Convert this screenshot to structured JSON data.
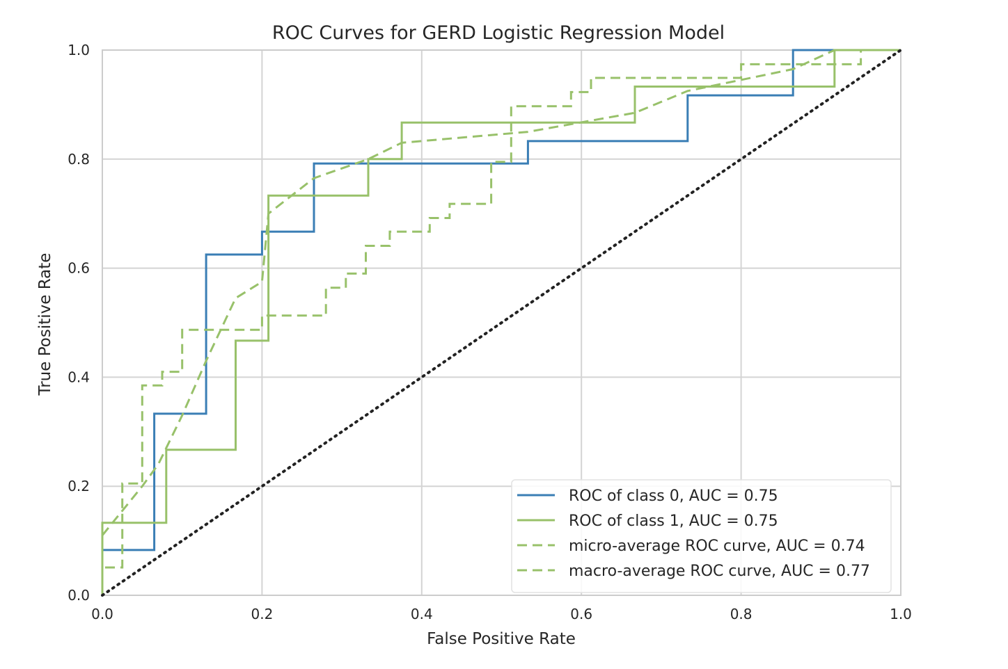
{
  "chart_data": {
    "type": "line",
    "title": "ROC Curves for GERD Logistic Regression Model",
    "xlabel": "False Positive Rate",
    "ylabel": "True Positive Rate",
    "xlim": [
      0.0,
      1.0
    ],
    "ylim": [
      0.0,
      1.0
    ],
    "xticks": [
      "0.0",
      "0.2",
      "0.4",
      "0.6",
      "0.8",
      "1.0"
    ],
    "yticks": [
      "0.0",
      "0.2",
      "0.4",
      "0.6",
      "0.8",
      "1.0"
    ],
    "grid": true,
    "legend_position": "lower-right",
    "series": [
      {
        "name": "ROC of class 0, AUC = 0.75",
        "color": "#3a7eb5",
        "style": "solid",
        "x": [
          0,
          0,
          0.065,
          0.065,
          0.13,
          0.13,
          0.2,
          0.2,
          0.265,
          0.265,
          0.533,
          0.533,
          0.733,
          0.733,
          0.865,
          0.865,
          1.0
        ],
        "y": [
          0,
          0.083,
          0.083,
          0.333,
          0.333,
          0.625,
          0.625,
          0.667,
          0.667,
          0.792,
          0.792,
          0.833,
          0.833,
          0.917,
          0.917,
          1.0,
          1.0
        ]
      },
      {
        "name": "ROC of class 1, AUC = 0.75",
        "color": "#98c16a",
        "style": "solid",
        "x": [
          0,
          0,
          0.08,
          0.08,
          0.167,
          0.167,
          0.208,
          0.208,
          0.333,
          0.333,
          0.375,
          0.375,
          0.667,
          0.667,
          0.917,
          0.917,
          1.0
        ],
        "y": [
          0,
          0.133,
          0.133,
          0.267,
          0.267,
          0.467,
          0.467,
          0.733,
          0.733,
          0.8,
          0.8,
          0.867,
          0.867,
          0.933,
          0.933,
          1.0,
          1.0
        ]
      },
      {
        "name": "micro-average ROC curve, AUC = 0.74",
        "color": "#98c16a",
        "style": "dashed",
        "x": [
          0,
          0,
          0.025,
          0.025,
          0.05,
          0.05,
          0.075,
          0.075,
          0.1,
          0.1,
          0.2,
          0.2,
          0.28,
          0.28,
          0.305,
          0.305,
          0.33,
          0.33,
          0.36,
          0.36,
          0.41,
          0.41,
          0.435,
          0.435,
          0.487,
          0.487,
          0.512,
          0.512,
          0.587,
          0.587,
          0.612,
          0.612,
          0.8,
          0.8,
          0.95,
          0.95,
          1.0
        ],
        "y": [
          0,
          0.051,
          0.051,
          0.205,
          0.205,
          0.385,
          0.385,
          0.41,
          0.41,
          0.487,
          0.487,
          0.513,
          0.513,
          0.564,
          0.564,
          0.59,
          0.59,
          0.641,
          0.641,
          0.667,
          0.667,
          0.692,
          0.692,
          0.718,
          0.718,
          0.795,
          0.795,
          0.897,
          0.897,
          0.923,
          0.923,
          0.949,
          0.949,
          0.974,
          0.974,
          1.0,
          1.0
        ]
      },
      {
        "name": "macro-average ROC curve, AUC = 0.77",
        "color": "#98c16a",
        "style": "dashed",
        "x": [
          0,
          0.05,
          0.07,
          0.1,
          0.13,
          0.167,
          0.2,
          0.208,
          0.265,
          0.333,
          0.375,
          0.533,
          0.667,
          0.733,
          0.865,
          0.917,
          1.0
        ],
        "y": [
          0.11,
          0.2,
          0.24,
          0.33,
          0.43,
          0.545,
          0.575,
          0.7,
          0.765,
          0.8,
          0.83,
          0.85,
          0.885,
          0.925,
          0.965,
          1.0,
          1.0
        ]
      },
      {
        "name": "",
        "color": "#222222",
        "style": "dotted",
        "x": [
          0,
          1
        ],
        "y": [
          0,
          1
        ]
      }
    ]
  }
}
